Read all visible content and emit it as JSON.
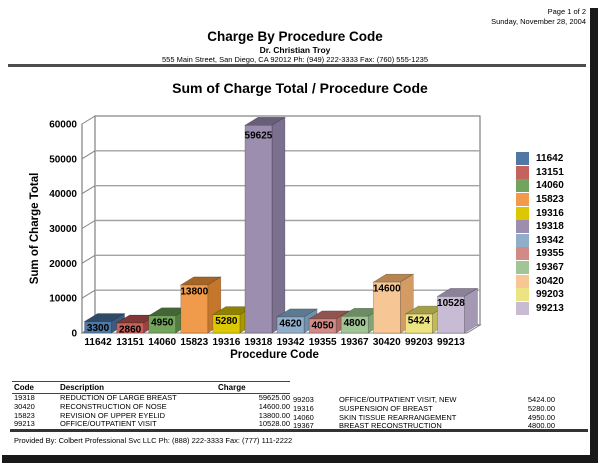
{
  "page": {
    "page_number": "Page 1 of 2",
    "date": "Sunday, November 28, 2004",
    "title": "Charge By Procedure Code",
    "doctor": "Dr. Christian Troy",
    "address": "555 Main Street, San Diego, CA 92012 Ph: (949) 222-3333 Fax: (760) 555-1235",
    "footer": "Provided By: Colbert Professional Svc LLC Ph: (888) 222-3333 Fax: (777) 111-2222"
  },
  "chart_data": {
    "type": "bar",
    "style": "3d",
    "title": "Sum of Charge Total / Procedure Code",
    "xlabel": "Procedure Code",
    "ylabel": "Sum of Charge Total",
    "categories": [
      "11642",
      "13151",
      "14060",
      "15823",
      "19316",
      "19318",
      "19342",
      "19355",
      "19367",
      "30420",
      "99203",
      "99213"
    ],
    "values": [
      3300,
      2860,
      4950,
      13800,
      5280,
      59625,
      4620,
      4050,
      4800,
      14600,
      5424,
      10528
    ],
    "ylim": [
      0,
      60000
    ],
    "ytick_step": 10000,
    "grid": true,
    "legend_position": "right",
    "point_colors": [
      {
        "face": "#4F79A4",
        "side": "#3A5B7E",
        "top": "#2E4A68"
      },
      {
        "face": "#C4625D",
        "side": "#9C4540",
        "top": "#7F3835"
      },
      {
        "face": "#72A45D",
        "side": "#547C41",
        "top": "#446636"
      },
      {
        "face": "#F09A4B",
        "side": "#C4772C",
        "top": "#A76423"
      },
      {
        "face": "#DCC802",
        "side": "#A89800",
        "top": "#8F8200"
      },
      {
        "face": "#9C8EAE",
        "side": "#7C708F",
        "top": "#685E79"
      },
      {
        "face": "#90AEC9",
        "side": "#7190AB",
        "top": "#5C7A92"
      },
      {
        "face": "#D18A85",
        "side": "#AE6660",
        "top": "#935450"
      },
      {
        "face": "#A2C598",
        "side": "#81A476",
        "top": "#6C8C63"
      },
      {
        "face": "#F6C795",
        "side": "#D29C64",
        "top": "#B78551"
      },
      {
        "face": "#ECE483",
        "side": "#C2BA59",
        "top": "#A59E48"
      },
      {
        "face": "#C8BCD4",
        "side": "#A498B4",
        "top": "#8C819B"
      }
    ],
    "axis_color": "#808080",
    "gridline_color": "#A3A3A3"
  },
  "table": {
    "headers": [
      "Code",
      "Description",
      "Charge"
    ],
    "left_rows": [
      {
        "code": "19318",
        "description": "REDUCTION OF LARGE BREAST",
        "charge": "59625.00"
      },
      {
        "code": "30420",
        "description": "RECONSTRUCTION OF NOSE",
        "charge": "14600.00"
      },
      {
        "code": "15823",
        "description": "REVISION OF UPPER EYELID",
        "charge": "13800.00"
      },
      {
        "code": "99213",
        "description": "OFFICE/OUTPATIENT VISIT",
        "charge": "10528.00"
      }
    ],
    "right_rows": [
      {
        "code": "99203",
        "description": "OFFICE/OUTPATIENT VISIT, NEW",
        "charge": "5424.00"
      },
      {
        "code": "19316",
        "description": "SUSPENSION OF BREAST",
        "charge": "5280.00"
      },
      {
        "code": "14060",
        "description": "SKIN TISSUE REARRANGEMENT",
        "charge": "4950.00"
      },
      {
        "code": "19367",
        "description": "BREAST RECONSTRUCTION",
        "charge": "4800.00"
      }
    ]
  }
}
